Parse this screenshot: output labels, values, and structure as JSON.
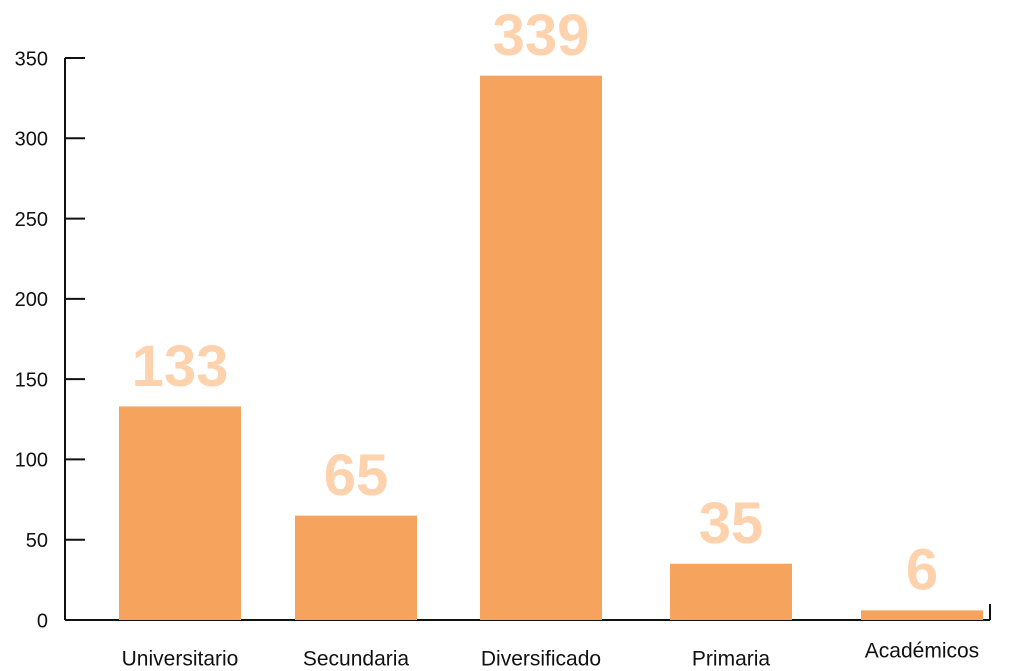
{
  "chart_data": {
    "type": "bar",
    "categories": [
      "Universitario",
      "Secundaria",
      "Diversificado",
      "Primaria",
      "Académicos"
    ],
    "values": [
      133,
      65,
      339,
      35,
      6
    ],
    "color": "#f6a35e",
    "ylim": [
      0,
      350
    ],
    "yticks": [
      0,
      50,
      100,
      150,
      200,
      250,
      300,
      350
    ]
  }
}
